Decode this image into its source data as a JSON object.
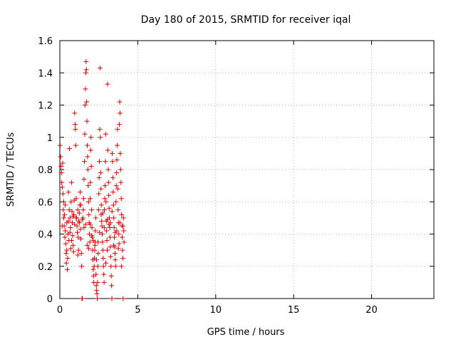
{
  "chart_data": {
    "type": "scatter",
    "title": "Day 180 of 2015, SRMTID for receiver iqal",
    "xlabel": "GPS time / hours",
    "ylabel": "SRMTID / TECUs",
    "xlim": [
      0,
      24
    ],
    "ylim": [
      0,
      1.6
    ],
    "x_ticks": [
      0,
      5,
      10,
      15,
      20
    ],
    "x_tick_labels": [
      "0",
      "5",
      "10",
      "15",
      "20"
    ],
    "y_ticks": [
      0,
      0.2,
      0.4,
      0.6,
      0.8,
      1.0,
      1.2,
      1.4,
      1.6
    ],
    "y_tick_labels": [
      "0",
      "0.2",
      "0.4",
      "0.6",
      "0.8",
      "1",
      "1.2",
      "1.4",
      "1.6"
    ],
    "grid": true,
    "marker": "+",
    "color": "#dd0000",
    "series": [
      {
        "name": "SRMTID",
        "points": [
          [
            0.02,
            0.95
          ],
          [
            0.05,
            0.88
          ],
          [
            0.08,
            0.82
          ],
          [
            0.1,
            0.78
          ],
          [
            0.12,
            0.72
          ],
          [
            0.15,
            0.69
          ],
          [
            0.18,
            0.84
          ],
          [
            0.2,
            0.65
          ],
          [
            0.22,
            0.55
          ],
          [
            0.25,
            0.6
          ],
          [
            0.28,
            0.45
          ],
          [
            0.3,
            0.52
          ],
          [
            0.32,
            0.38
          ],
          [
            0.35,
            0.42
          ],
          [
            0.38,
            0.34
          ],
          [
            0.4,
            0.28
          ],
          [
            0.42,
            0.22
          ],
          [
            0.45,
            0.3
          ],
          [
            0.48,
            0.18
          ],
          [
            0.5,
            0.25
          ],
          [
            0.52,
            0.4
          ],
          [
            0.55,
            0.48
          ],
          [
            0.58,
            0.36
          ],
          [
            0.6,
            0.55
          ],
          [
            0.62,
            0.93
          ],
          [
            0.65,
            0.5
          ],
          [
            0.68,
            0.44
          ],
          [
            0.7,
            0.31
          ],
          [
            0.72,
            0.6
          ],
          [
            0.75,
            0.72
          ],
          [
            0.78,
            0.54
          ],
          [
            0.8,
            0.47
          ],
          [
            0.82,
            0.39
          ],
          [
            0.85,
            0.33
          ],
          [
            0.88,
            0.29
          ],
          [
            0.9,
            0.52
          ],
          [
            0.92,
            0.61
          ],
          [
            0.95,
            1.15
          ],
          [
            0.98,
            1.08
          ],
          [
            1.0,
            1.05
          ],
          [
            1.02,
            0.95
          ],
          [
            1.05,
            0.62
          ],
          [
            1.08,
            0.5
          ],
          [
            1.1,
            0.45
          ],
          [
            1.12,
            0.41
          ],
          [
            1.15,
            0.55
          ],
          [
            1.18,
            0.38
          ],
          [
            1.2,
            0.3
          ],
          [
            1.22,
            0.48
          ],
          [
            1.25,
            0.53
          ],
          [
            1.28,
            0.58
          ],
          [
            1.3,
            0.66
          ],
          [
            1.32,
            0.43
          ],
          [
            1.35,
            0.37
          ],
          [
            1.38,
            0.28
          ],
          [
            1.4,
            0.2
          ],
          [
            1.42,
            0.0
          ],
          [
            1.45,
            0.0
          ],
          [
            1.48,
            0.5
          ],
          [
            1.5,
            0.55
          ],
          [
            1.52,
            0.62
          ],
          [
            1.55,
            0.74
          ],
          [
            1.58,
            0.85
          ],
          [
            1.6,
            1.02
          ],
          [
            1.62,
            1.2
          ],
          [
            1.64,
            1.3
          ],
          [
            1.66,
            1.4
          ],
          [
            1.68,
            1.47
          ],
          [
            1.7,
            1.42
          ],
          [
            1.72,
            1.22
          ],
          [
            1.74,
            1.1
          ],
          [
            1.76,
            0.95
          ],
          [
            1.78,
            0.88
          ],
          [
            1.8,
            0.8
          ],
          [
            1.82,
            0.7
          ],
          [
            1.84,
            0.6
          ],
          [
            1.86,
            0.52
          ],
          [
            1.88,
            0.47
          ],
          [
            1.9,
            0.4
          ],
          [
            1.92,
            0.35
          ],
          [
            1.94,
            0.62
          ],
          [
            1.96,
            0.72
          ],
          [
            1.98,
            0.92
          ],
          [
            2.0,
            1.0
          ],
          [
            2.02,
            0.82
          ],
          [
            2.04,
            0.55
          ],
          [
            2.06,
            0.44
          ],
          [
            2.08,
            0.38
          ],
          [
            2.1,
            0.3
          ],
          [
            2.12,
            0.24
          ],
          [
            2.14,
            0.18
          ],
          [
            2.16,
            0.14
          ],
          [
            2.18,
            0.1
          ],
          [
            2.2,
            0.2
          ],
          [
            2.22,
            0.25
          ],
          [
            2.24,
            0.3
          ],
          [
            2.26,
            0.35
          ],
          [
            2.28,
            0.42
          ],
          [
            2.3,
            0.5
          ],
          [
            2.32,
            0.15
          ],
          [
            2.34,
            0.08
          ],
          [
            2.36,
            0.05
          ],
          [
            2.38,
            0.03
          ],
          [
            2.4,
            0.0
          ],
          [
            2.42,
            0.1
          ],
          [
            2.44,
            0.2
          ],
          [
            2.46,
            0.28
          ],
          [
            2.48,
            0.55
          ],
          [
            2.5,
            0.65
          ],
          [
            2.52,
            0.75
          ],
          [
            2.54,
            0.85
          ],
          [
            2.56,
            1.05
          ],
          [
            2.58,
            1.43
          ],
          [
            2.6,
            1.0
          ],
          [
            2.62,
            0.78
          ],
          [
            2.64,
            0.68
          ],
          [
            2.66,
            0.58
          ],
          [
            2.68,
            0.48
          ],
          [
            2.7,
            0.45
          ],
          [
            2.72,
            0.4
          ],
          [
            2.74,
            0.35
          ],
          [
            2.76,
            0.3
          ],
          [
            2.78,
            0.25
          ],
          [
            2.8,
            0.2
          ],
          [
            2.82,
            0.15
          ],
          [
            2.84,
            0.1
          ],
          [
            2.86,
            0.55
          ],
          [
            2.88,
            0.62
          ],
          [
            2.9,
            0.7
          ],
          [
            2.92,
            0.85
          ],
          [
            2.94,
            1.02
          ],
          [
            2.96,
            0.6
          ],
          [
            2.98,
            0.48
          ],
          [
            3.0,
            0.42
          ],
          [
            3.02,
            0.36
          ],
          [
            3.04,
            0.3
          ],
          [
            3.06,
            1.33
          ],
          [
            3.08,
            0.92
          ],
          [
            3.1,
            0.8
          ],
          [
            3.12,
            0.72
          ],
          [
            3.14,
            0.64
          ],
          [
            3.16,
            0.56
          ],
          [
            3.18,
            0.5
          ],
          [
            3.2,
            0.44
          ],
          [
            3.22,
            0.38
          ],
          [
            3.24,
            0.32
          ],
          [
            3.26,
            0.26
          ],
          [
            3.28,
            0.2
          ],
          [
            3.3,
            0.14
          ],
          [
            3.32,
            0.08
          ],
          [
            3.34,
            0.0
          ],
          [
            3.36,
            0.9
          ],
          [
            3.38,
            0.85
          ],
          [
            3.4,
            0.75
          ],
          [
            3.42,
            0.66
          ],
          [
            3.44,
            0.58
          ],
          [
            3.46,
            0.5
          ],
          [
            3.48,
            0.44
          ],
          [
            3.5,
            0.38
          ],
          [
            3.52,
            0.32
          ],
          [
            3.54,
            0.28
          ],
          [
            3.56,
            0.24
          ],
          [
            3.58,
            0.2
          ],
          [
            3.6,
            0.6
          ],
          [
            3.62,
            0.7
          ],
          [
            3.64,
            0.78
          ],
          [
            3.66,
            0.86
          ],
          [
            3.68,
            0.95
          ],
          [
            3.7,
            1.05
          ],
          [
            3.72,
            0.68
          ],
          [
            3.74,
            0.55
          ],
          [
            3.76,
            0.47
          ],
          [
            3.78,
            0.4
          ],
          [
            3.8,
            0.34
          ],
          [
            3.82,
            1.08
          ],
          [
            3.84,
            1.22
          ],
          [
            3.86,
            1.15
          ],
          [
            3.88,
            0.9
          ],
          [
            3.9,
            0.8
          ],
          [
            3.92,
            0.72
          ],
          [
            3.94,
            0.62
          ],
          [
            3.96,
            0.52
          ],
          [
            3.98,
            0.45
          ],
          [
            4.0,
            0.38
          ],
          [
            4.02,
            0.3
          ],
          [
            4.04,
            0.25
          ],
          [
            4.06,
            0.0
          ],
          [
            4.08,
            0.5
          ],
          [
            4.1,
            0.42
          ],
          [
            4.12,
            0.35
          ],
          [
            0.15,
            0.45
          ],
          [
            0.35,
            0.58
          ],
          [
            0.55,
            0.66
          ],
          [
            0.75,
            0.36
          ],
          [
            0.95,
            0.46
          ],
          [
            1.15,
            0.27
          ],
          [
            1.35,
            0.58
          ],
          [
            1.55,
            0.44
          ],
          [
            1.75,
            0.33
          ],
          [
            1.95,
            0.46
          ],
          [
            2.15,
            0.36
          ],
          [
            2.35,
            0.24
          ],
          [
            2.55,
            0.41
          ],
          [
            2.75,
            0.53
          ],
          [
            2.95,
            0.22
          ],
          [
            3.15,
            0.46
          ],
          [
            3.35,
            0.54
          ],
          [
            3.55,
            0.41
          ],
          [
            3.75,
            0.31
          ],
          [
            3.95,
            0.2
          ],
          [
            0.25,
            0.5
          ],
          [
            0.45,
            0.47
          ],
          [
            0.65,
            0.41
          ],
          [
            0.85,
            0.51
          ],
          [
            1.05,
            0.5
          ],
          [
            1.25,
            0.47
          ],
          [
            1.45,
            0.49
          ],
          [
            1.65,
            0.46
          ],
          [
            1.85,
            0.31
          ],
          [
            2.05,
            0.39
          ],
          [
            2.25,
            0.33
          ],
          [
            2.45,
            0.35
          ],
          [
            2.65,
            0.52
          ],
          [
            2.85,
            0.44
          ],
          [
            3.05,
            0.49
          ],
          [
            3.25,
            0.47
          ],
          [
            3.45,
            0.33
          ],
          [
            3.65,
            0.42
          ],
          [
            3.85,
            0.47
          ],
          [
            4.05,
            0.45
          ]
        ]
      }
    ]
  }
}
